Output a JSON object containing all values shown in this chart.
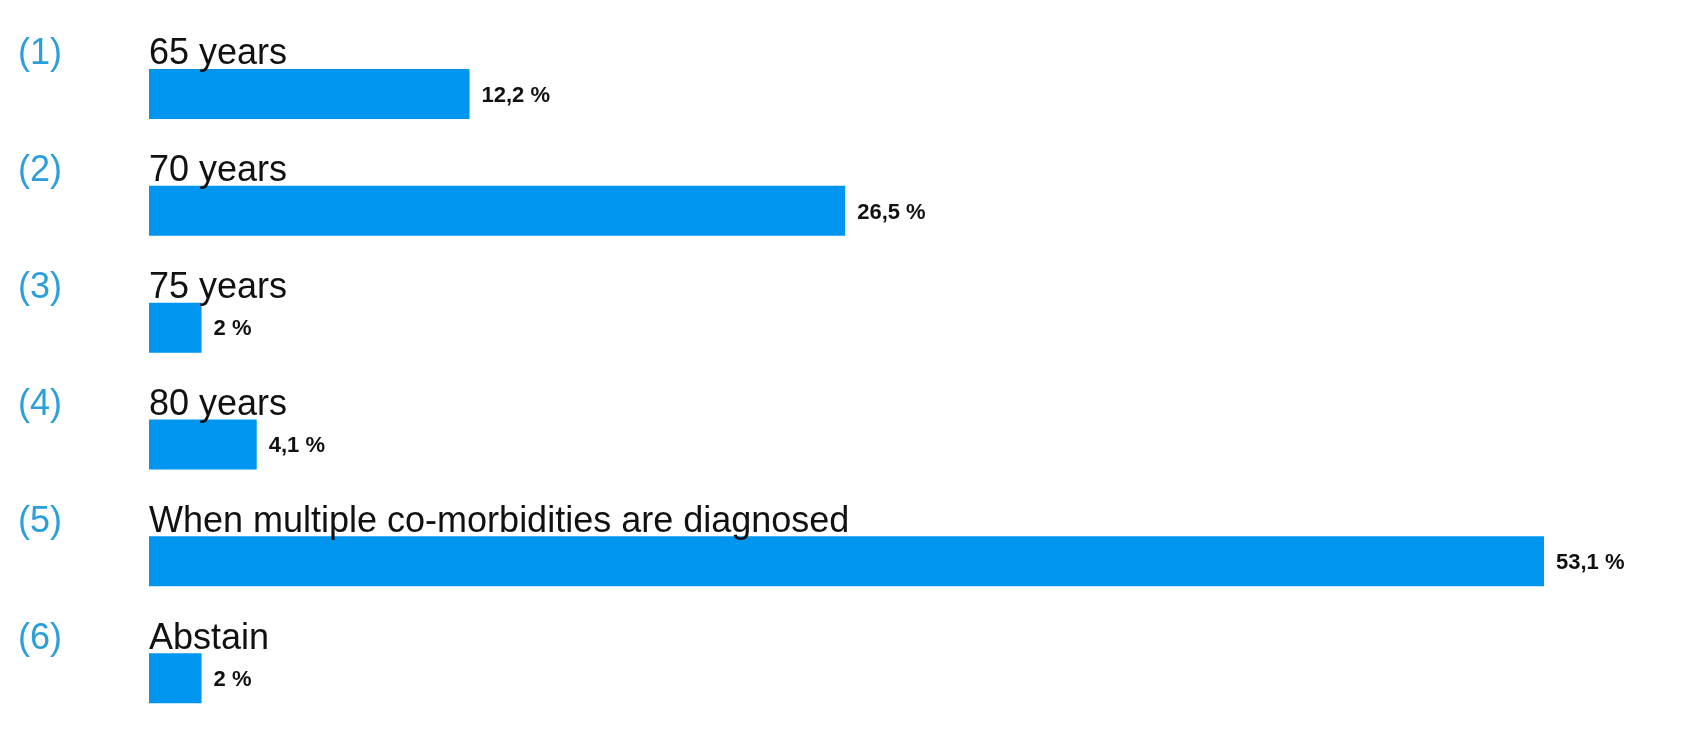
{
  "chart_data": {
    "type": "bar",
    "orientation": "horizontal",
    "categories": [
      "65 years",
      "70 years",
      "75 years",
      "80 years",
      "When multiple co-morbidities are diagnosed",
      "Abstain"
    ],
    "values": [
      12.2,
      26.5,
      2,
      4.1,
      53.1,
      2
    ],
    "value_labels": [
      "12,2 %",
      "26,5 %",
      "2 %",
      "4,1 %",
      "53,1 %",
      "2 %"
    ],
    "color": "#0096f0",
    "annotations": [
      "(1)",
      "(2)",
      "(3)",
      "(4)",
      "(5)",
      "(6)"
    ]
  }
}
